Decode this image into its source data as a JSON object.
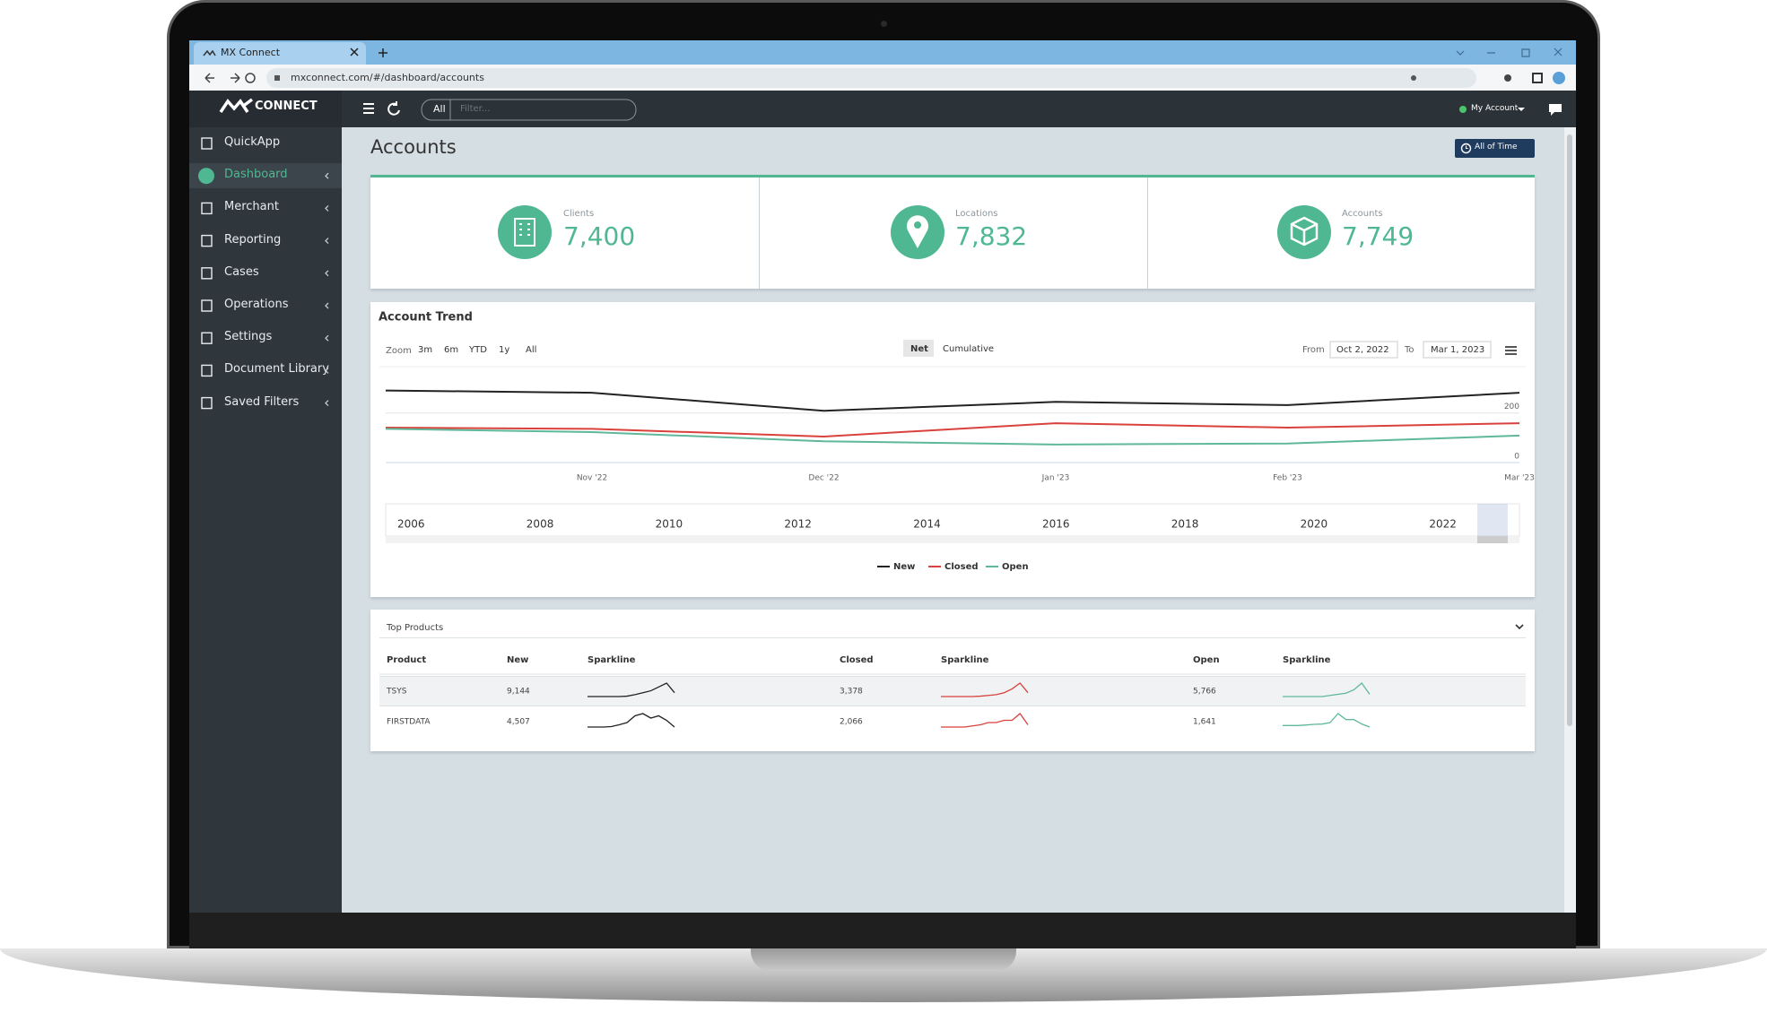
{
  "browser": {
    "tab_title": "MX Connect",
    "url": "mxconnect.com/#/dashboard/accounts"
  },
  "app": {
    "logo": "CONNECT",
    "search_scope": "All",
    "search_placeholder": "Filter...",
    "account": "My Account"
  },
  "sidebar": [
    {
      "label": "QuickApp"
    },
    {
      "label": "Dashboard",
      "active": true
    },
    {
      "label": "Merchant"
    },
    {
      "label": "Reporting"
    },
    {
      "label": "Cases"
    },
    {
      "label": "Operations"
    },
    {
      "label": "Settings"
    },
    {
      "label": "Document Library"
    },
    {
      "label": "Saved Filters"
    }
  ],
  "page": {
    "title": "Accounts",
    "range_button": "All of Time"
  },
  "kpis": [
    {
      "label": "Clients",
      "value": "7,400"
    },
    {
      "label": "Locations",
      "value": "7,832"
    },
    {
      "label": "Accounts",
      "value": "7,749"
    }
  ],
  "chart_data": {
    "type": "line",
    "title": "Account Trend",
    "zoom_label": "Zoom",
    "zoom_options": [
      "3m",
      "6m",
      "YTD",
      "1y",
      "All"
    ],
    "modes": [
      "Net",
      "Cumulative"
    ],
    "from_label": "From",
    "from": "Oct 2, 2022",
    "to_label": "To",
    "to": "Mar 1, 2023",
    "categories": [
      null,
      "Nov '22",
      "Dec '22",
      "Jan '23",
      "Feb '23",
      "Mar '23"
    ],
    "series": [
      {
        "name": "New",
        "color": "#222222",
        "values": [
          291,
          282,
          209,
          245,
          232,
          282
        ]
      },
      {
        "name": "Closed",
        "color": "#d9413b",
        "values": [
          141,
          136,
          105,
          159,
          141,
          159
        ]
      },
      {
        "name": "Open",
        "color": "#5fb89a",
        "values": [
          136,
          123,
          86,
          73,
          77,
          109
        ]
      }
    ],
    "ylim": [
      0,
      380
    ],
    "yticks": [
      0,
      200
    ],
    "grid": true,
    "navigator_years": [
      2006,
      2008,
      2010,
      2012,
      2014,
      2016,
      2018,
      2020,
      2022
    ]
  },
  "table": {
    "title": "Top Products",
    "columns": [
      "Product",
      "New",
      "Sparkline",
      "Closed",
      "Sparkline",
      "Open",
      "Sparkline"
    ],
    "rows": [
      {
        "product": "TSYS",
        "new": "9,144",
        "new_trend": [
          1,
          1,
          1,
          1,
          1,
          1.2,
          2,
          3,
          4,
          6,
          8,
          3
        ],
        "closed": "3,378",
        "closed_trend": [
          1,
          1,
          1,
          1,
          1,
          1.2,
          1.6,
          2,
          3,
          5,
          8,
          3
        ],
        "open": "5,766",
        "open_trend": [
          1,
          1,
          1,
          1,
          1,
          1,
          1.5,
          2,
          2.5,
          4,
          7,
          2
        ]
      },
      {
        "product": "FIRSTDATA",
        "new": "4,507",
        "new_trend": [
          1,
          1,
          1,
          1.2,
          2,
          3,
          6,
          7,
          5,
          6,
          4,
          1
        ],
        "closed": "2,066",
        "closed_trend": [
          1,
          1,
          1,
          1,
          1.5,
          2,
          3,
          3,
          4,
          4,
          7,
          2
        ],
        "open": "1,641",
        "open_trend": [
          1,
          1,
          1,
          1.2,
          1.4,
          1.5,
          2,
          5,
          3,
          3,
          1.5,
          0.5
        ]
      }
    ]
  }
}
